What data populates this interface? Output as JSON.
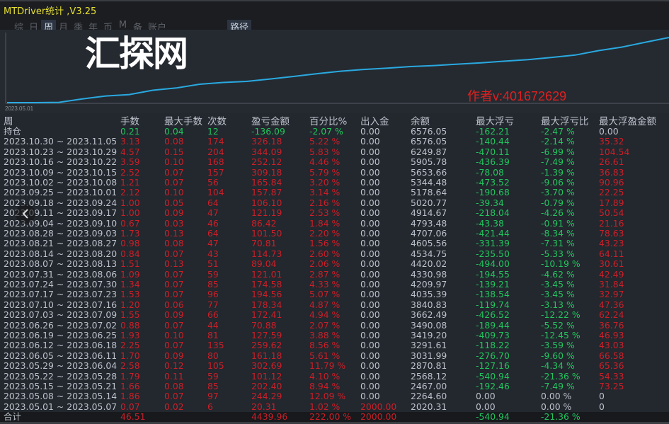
{
  "window": {
    "title": "MTDriver统计 ,V3.25"
  },
  "tabs": [
    {
      "label": "综",
      "active": false
    },
    {
      "label": "日",
      "active": false
    },
    {
      "label": "周",
      "active": true
    },
    {
      "label": "月",
      "active": false
    },
    {
      "label": "季",
      "active": false
    },
    {
      "label": "年",
      "active": false
    },
    {
      "label": "币",
      "active": false
    },
    {
      "label": "M",
      "active": false
    },
    {
      "label": "备",
      "active": false
    },
    {
      "label": "账户",
      "active": false
    }
  ],
  "path_button": "路径",
  "chart": {
    "start_date": "2023.05.01",
    "author": "作者v:401672629",
    "line_color": "#29a9e0"
  },
  "colors": {
    "red": "#cc1f28",
    "green": "#22c55e",
    "gray": "#bcc2cb",
    "title": "#e6e032"
  },
  "headers": [
    "周",
    "手数",
    "最大手数",
    "次数",
    "盈亏金额",
    "百分比%",
    "出入金",
    "余额",
    "最大浮亏",
    "最大浮亏比",
    "最大浮盈金额"
  ],
  "holding": {
    "label": "持仓",
    "values": [
      "0.21",
      "0.04",
      "12",
      "-136.09",
      "-2.07 %",
      "0.00",
      "6576.05",
      "-162.21",
      "-2.47 %",
      "0.00"
    ]
  },
  "rows": [
    [
      "2023.10.30 ~ 2023.11.05",
      "3.13",
      "0.08",
      "174",
      "326.18",
      "5.22 %",
      "0.00",
      "6576.05",
      "-140.44",
      "-2.14 %",
      "35.32"
    ],
    [
      "2023.10.23 ~ 2023.10.29",
      "4.57",
      "0.15",
      "204",
      "344.09",
      "5.83 %",
      "0.00",
      "6249.87",
      "-470.11",
      "-6.99 %",
      "104.54"
    ],
    [
      "2023.10.16 ~ 2023.10.22",
      "3.59",
      "0.10",
      "168",
      "252.12",
      "4.46 %",
      "0.00",
      "5905.78",
      "-436.39",
      "-7.49 %",
      "26.61"
    ],
    [
      "2023.10.09 ~ 2023.10.15",
      "2.52",
      "0.07",
      "157",
      "309.18",
      "5.79 %",
      "0.00",
      "5653.66",
      "-78.08",
      "-1.39 %",
      "36.83"
    ],
    [
      "2023.10.02 ~ 2023.10.08",
      "1.21",
      "0.07",
      "56",
      "165.84",
      "3.20 %",
      "0.00",
      "5344.48",
      "-473.52",
      "-9.06 %",
      "90.96"
    ],
    [
      "2023.09.25 ~ 2023.10.01",
      "2.12",
      "0.10",
      "104",
      "157.87",
      "3.14 %",
      "0.00",
      "5178.64",
      "-190.68",
      "-3.70 %",
      "22.25"
    ],
    [
      "2023.09.18 ~ 2023.09.24",
      "1.00",
      "0.05",
      "64",
      "106.10",
      "2.16 %",
      "0.00",
      "5020.77",
      "-39.34",
      "-0.79 %",
      "17.89"
    ],
    [
      "2023.09.11 ~ 2023.09.17",
      "1.00",
      "0.09",
      "47",
      "121.19",
      "2.53 %",
      "0.00",
      "4914.67",
      "-218.04",
      "-4.26 %",
      "50.54"
    ],
    [
      "2023.09.04 ~ 2023.09.10",
      "0.67",
      "0.03",
      "46",
      "86.42",
      "1.84 %",
      "0.00",
      "4793.48",
      "-43.38",
      "-0.91 %",
      "21.16"
    ],
    [
      "2023.08.28 ~ 2023.09.03",
      "1.73",
      "0.13",
      "64",
      "101.50",
      "2.20 %",
      "0.00",
      "4707.06",
      "-421.44",
      "-8.34 %",
      "78.63"
    ],
    [
      "2023.08.21 ~ 2023.08.27",
      "0.98",
      "0.08",
      "47",
      "70.81",
      "1.56 %",
      "0.00",
      "4605.56",
      "-331.39",
      "-7.31 %",
      "43.23"
    ],
    [
      "2023.08.14 ~ 2023.08.20",
      "0.84",
      "0.07",
      "43",
      "114.73",
      "2.60 %",
      "0.00",
      "4534.75",
      "-235.50",
      "-5.33 %",
      "64.11"
    ],
    [
      "2023.08.07 ~ 2023.08.13",
      "1.51",
      "0.13",
      "51",
      "89.04",
      "2.06 %",
      "0.00",
      "4420.02",
      "-494.00",
      "-10.19 %",
      "30.61"
    ],
    [
      "2023.07.31 ~ 2023.08.06",
      "1.09",
      "0.07",
      "59",
      "121.01",
      "2.87 %",
      "0.00",
      "4330.98",
      "-194.55",
      "-4.62 %",
      "42.49"
    ],
    [
      "2023.07.24 ~ 2023.07.30",
      "1.34",
      "0.07",
      "85",
      "174.58",
      "4.33 %",
      "0.00",
      "4209.97",
      "-139.21",
      "-3.45 %",
      "31.84"
    ],
    [
      "2023.07.17 ~ 2023.07.23",
      "1.53",
      "0.07",
      "96",
      "194.56",
      "5.07 %",
      "0.00",
      "4035.39",
      "-138.54",
      "-3.45 %",
      "32.97"
    ],
    [
      "2023.07.10 ~ 2023.07.16",
      "1.20",
      "0.06",
      "77",
      "178.34",
      "4.87 %",
      "0.00",
      "3840.83",
      "-119.74",
      "-3.13 %",
      "47.36"
    ],
    [
      "2023.07.03 ~ 2023.07.09",
      "1.55",
      "0.09",
      "66",
      "172.41",
      "4.94 %",
      "0.00",
      "3662.49",
      "-426.52",
      "-12.22 %",
      "62.24"
    ],
    [
      "2023.06.26 ~ 2023.07.02",
      "0.88",
      "0.07",
      "44",
      "70.88",
      "2.07 %",
      "0.00",
      "3490.08",
      "-189.44",
      "-5.52 %",
      "36.76"
    ],
    [
      "2023.06.19 ~ 2023.06.25",
      "1.93",
      "0.10",
      "81",
      "127.59",
      "3.88 %",
      "0.00",
      "3419.20",
      "-409.73",
      "-12.45 %",
      "46.93"
    ],
    [
      "2023.06.12 ~ 2023.06.18",
      "2.25",
      "0.07",
      "135",
      "259.62",
      "8.56 %",
      "0.00",
      "3291.61",
      "-118.22",
      "-3.59 %",
      "43.03"
    ],
    [
      "2023.06.05 ~ 2023.06.11",
      "1.70",
      "0.09",
      "80",
      "161.18",
      "5.61 %",
      "0.00",
      "3031.99",
      "-276.70",
      "-9.60 %",
      "66.58"
    ],
    [
      "2023.05.29 ~ 2023.06.04",
      "2.58",
      "0.12",
      "105",
      "302.69",
      "11.79 %",
      "0.00",
      "2870.81",
      "-127.16",
      "-4.34 %",
      "65.36"
    ],
    [
      "2023.05.22 ~ 2023.05.28",
      "1.79",
      "0.11",
      "59",
      "101.12",
      "4.10 %",
      "0.00",
      "2568.12",
      "-540.94",
      "-21.36 %",
      "54.33"
    ],
    [
      "2023.05.15 ~ 2023.05.21",
      "1.66",
      "0.08",
      "85",
      "202.40",
      "8.94 %",
      "0.00",
      "2467.00",
      "-192.46",
      "-7.49 %",
      "73.25"
    ],
    [
      "2023.05.08 ~ 2023.05.14",
      "1.86",
      "0.07",
      "97",
      "244.29",
      "12.09 %",
      "0.00",
      "2264.60",
      "0.00",
      "0.00 %",
      "0"
    ],
    [
      "2023.05.01 ~ 2023.05.07",
      "0.07",
      "0.02",
      "6",
      "20.31",
      "1.02 %",
      "2000.00",
      "2020.31",
      "0.00",
      "0.00 %",
      "0"
    ]
  ],
  "total": {
    "label": "合计",
    "values": [
      "46.51",
      "",
      "",
      "4439.96",
      "222.00 %",
      "2000.00",
      "",
      "-540.94",
      "-21.36 %",
      ""
    ]
  },
  "watermark": "汇探网",
  "nav_prev_icon": "chevron-left-icon"
}
